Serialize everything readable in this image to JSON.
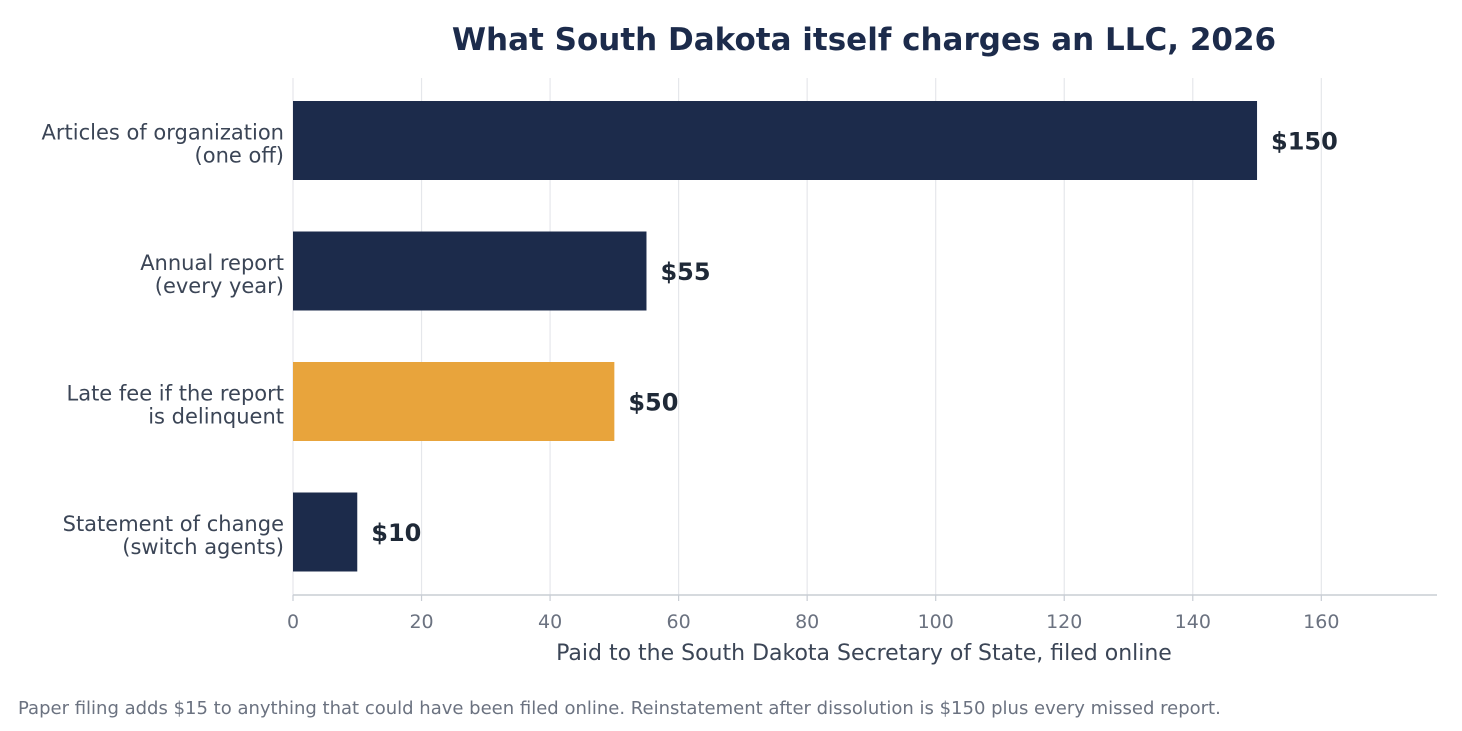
{
  "chart_data": {
    "type": "bar",
    "orientation": "horizontal",
    "title": "What South Dakota itself charges an LLC, 2026",
    "xlabel": "Paid to the South Dakota Secretary of State, filed online",
    "ylabel": "",
    "xlim": [
      0,
      178
    ],
    "xticks": [
      0,
      20,
      40,
      60,
      80,
      100,
      120,
      140,
      160
    ],
    "grid": "vertical",
    "categories": [
      [
        "Articles of organization",
        "(one off)"
      ],
      [
        "Annual report",
        "(every year)"
      ],
      [
        "Late fee if the report",
        "is delinquent"
      ],
      [
        "Statement of change",
        "(switch agents)"
      ]
    ],
    "values": [
      150,
      55,
      50,
      10
    ],
    "value_labels": [
      "$150",
      "$55",
      "$50",
      "$10"
    ],
    "bar_colors": [
      "#1c2b4b",
      "#1c2b4b",
      "#e8a43c",
      "#1c2b4b"
    ]
  },
  "colors": {
    "title": "#1c2b4b",
    "category_text": "#3b4556",
    "tick_text": "#6b7280",
    "grid": "#e5e7eb",
    "axis": "#c8cdd4",
    "value_label": "#1f2937"
  },
  "footnote": "Paper filing adds $15 to anything that could have been filed online. Reinstatement after dissolution is $150 plus every missed report."
}
